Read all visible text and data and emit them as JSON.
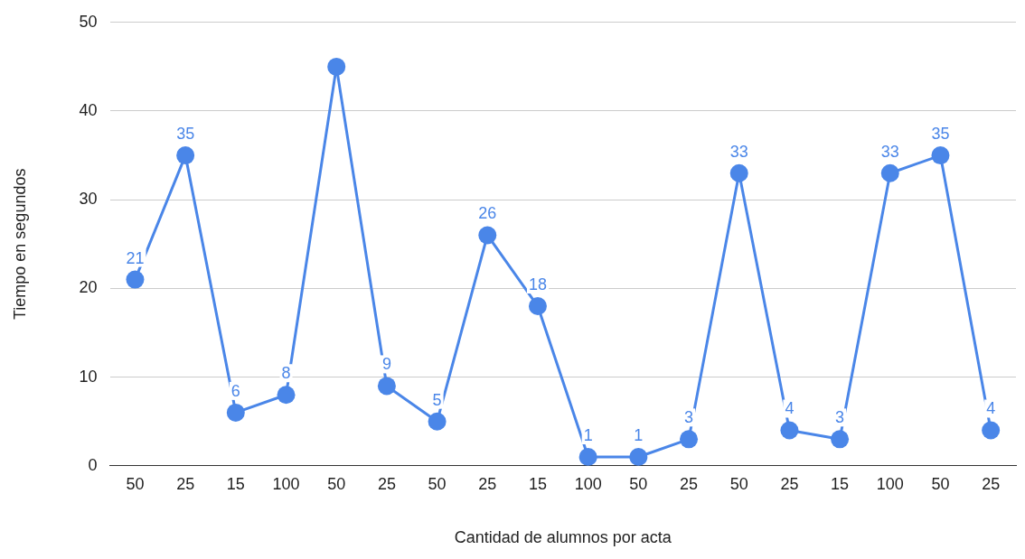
{
  "chart_data": {
    "type": "line",
    "xlabel": "Cantidad de alumnos por acta",
    "ylabel": "Tiempo en segundos",
    "categories": [
      "50",
      "25",
      "15",
      "100",
      "50",
      "25",
      "50",
      "25",
      "15",
      "100",
      "50",
      "25",
      "50",
      "25",
      "15",
      "100",
      "50",
      "25"
    ],
    "series": [
      {
        "color": "#4a86e8",
        "values": [
          21,
          35,
          6,
          8,
          45,
          9,
          5,
          26,
          18,
          1,
          1,
          3,
          33,
          4,
          3,
          33,
          35,
          4
        ],
        "value_labels": [
          "21",
          "35",
          "6",
          "8",
          null,
          "9",
          "5",
          "26",
          "18",
          "1",
          "1",
          "3",
          "33",
          "4",
          "3",
          "33",
          "35",
          "4"
        ]
      }
    ],
    "ylim": [
      0,
      50
    ],
    "yticks": [
      0,
      10,
      20,
      30,
      40,
      50
    ],
    "grid": "y",
    "legend": false,
    "marker": "circle",
    "line_style": "solid"
  }
}
